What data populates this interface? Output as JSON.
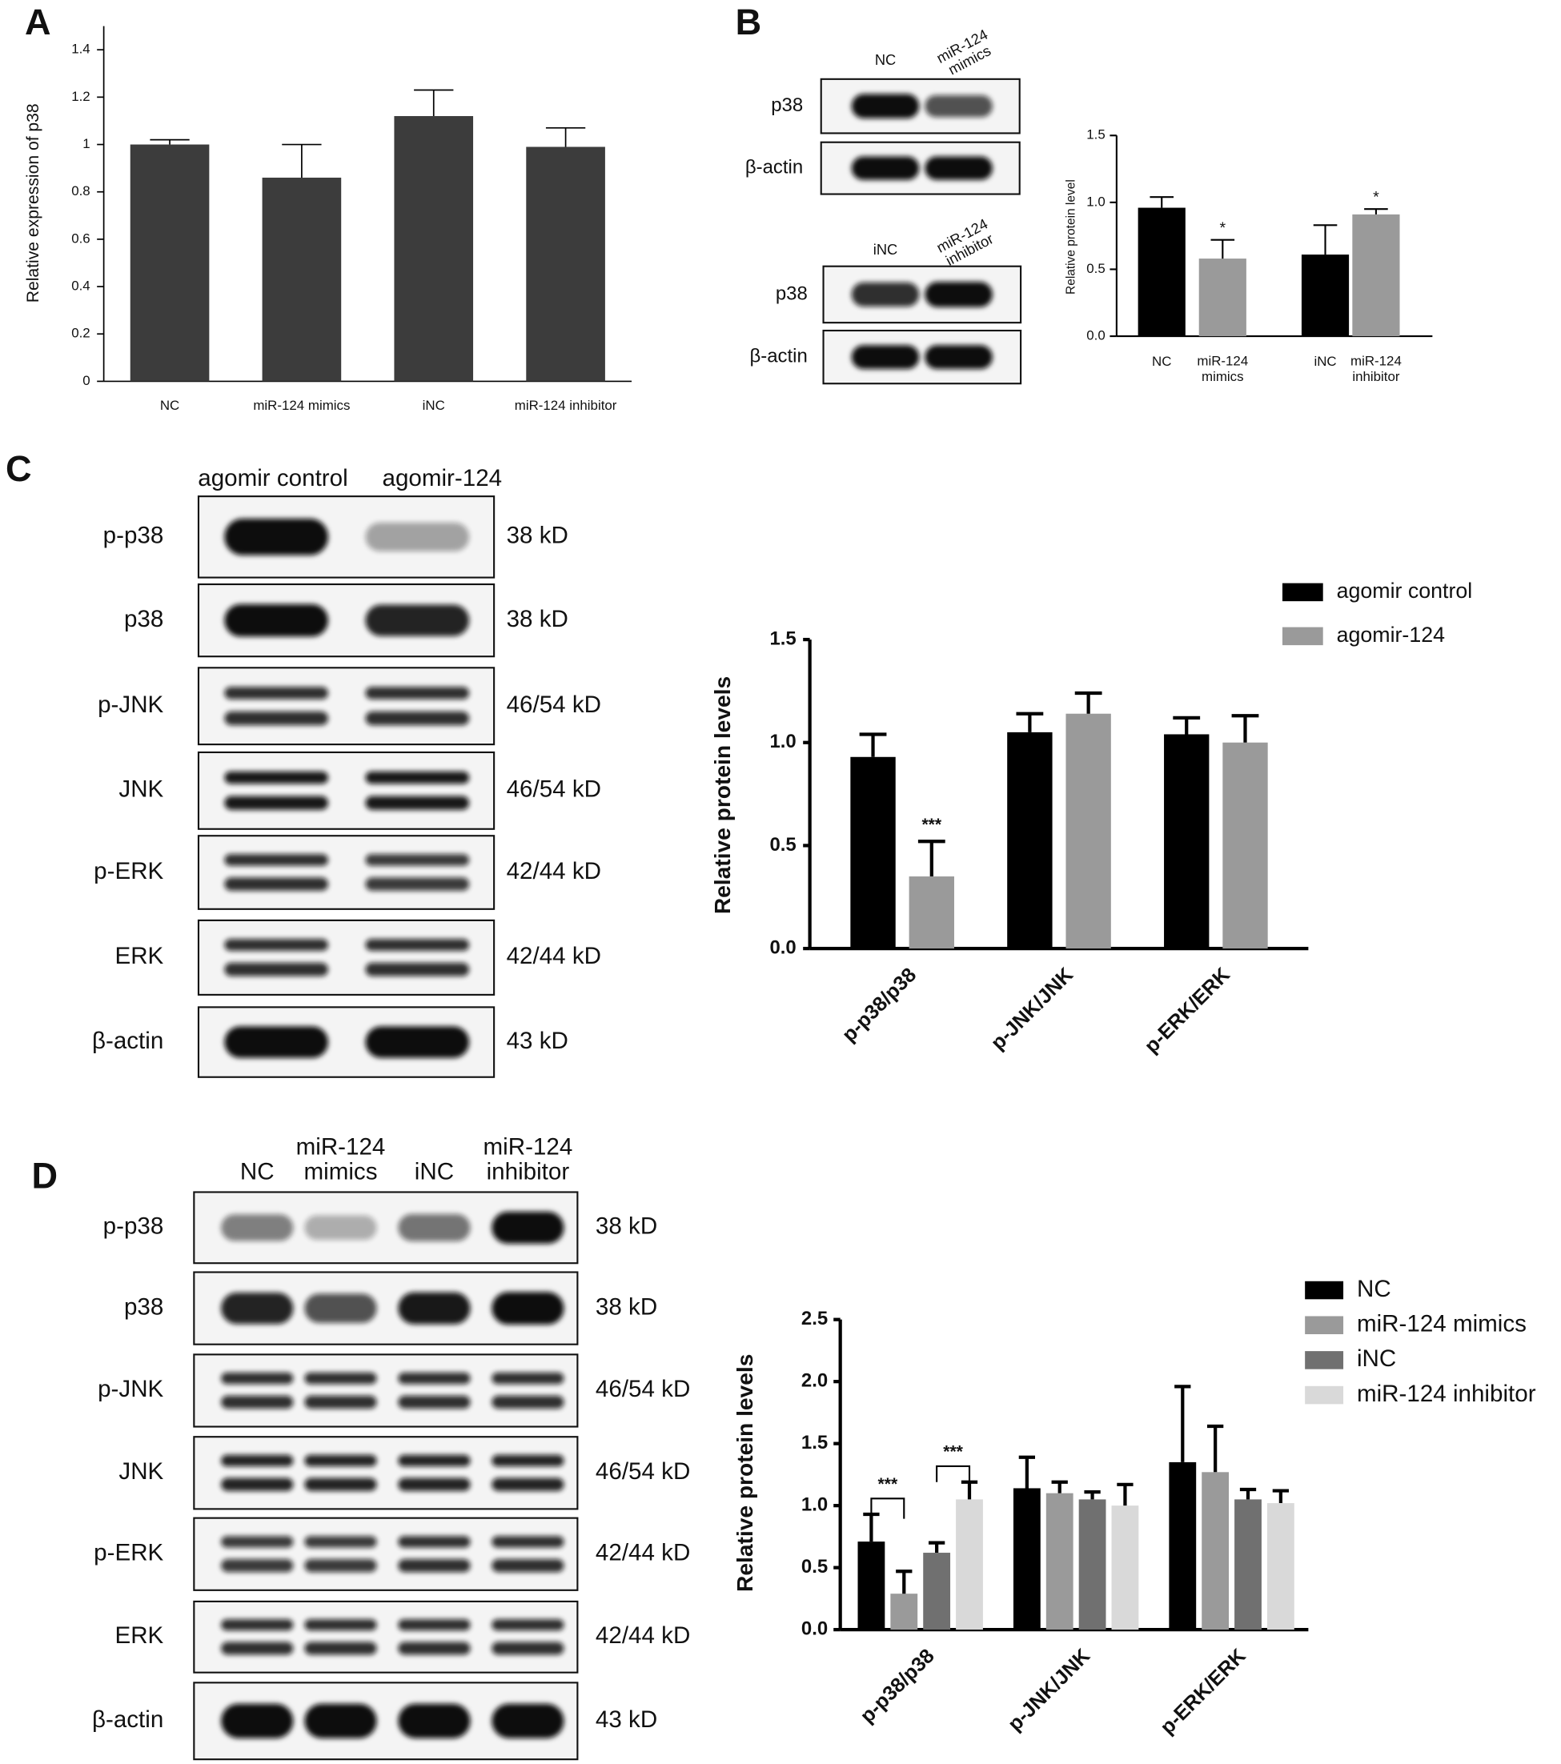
{
  "panel_labels": [
    "A",
    "B",
    "C",
    "D"
  ],
  "chart_data": [
    {
      "type": "bar",
      "y_label": "Relative expression of p38",
      "categories": [
        "NC",
        "miR-124 mimics",
        "iNC",
        "miR-124 inhibitor"
      ],
      "values": [
        1.0,
        0.86,
        1.12,
        0.99
      ],
      "errors": [
        0.02,
        0.14,
        0.11,
        0.08
      ],
      "color": "#3c3c3c",
      "ylim": [
        0,
        1.5
      ],
      "yticks": [
        0,
        0.2,
        0.4,
        0.6,
        0.8,
        1,
        1.2,
        1.4
      ]
    },
    {
      "type": "bar",
      "y_label": "Relative protein level",
      "categories": [
        "NC",
        "miR-124\nmimics",
        "iNC",
        "miR-124\ninhibitor"
      ],
      "values": [
        0.96,
        0.58,
        0.61,
        0.91
      ],
      "errors": [
        0.08,
        0.14,
        0.22,
        0.04
      ],
      "colors": [
        "#000000",
        "#9a9a9a",
        "#000000",
        "#9a9a9a"
      ],
      "ylim": [
        0,
        1.5
      ],
      "yticks": [
        {
          "value": 0,
          "label": "0.0"
        },
        {
          "value": 0.5,
          "label": "0.5"
        },
        {
          "value": 1,
          "label": "1.0"
        },
        {
          "value": 1.5,
          "label": "1.5"
        }
      ],
      "annotations": [
        {
          "index": 1,
          "text": "*"
        },
        {
          "index": 3,
          "text": "*"
        }
      ]
    },
    {
      "type": "grouped-bar",
      "y_label": "Relative protein levels",
      "categories": [
        "p-p38/p38",
        "p-JNK/JNK",
        "p-ERK/ERK"
      ],
      "series": [
        {
          "name": "agomir control",
          "color": "#000000",
          "values": [
            0.93,
            1.05,
            1.04
          ],
          "errors": [
            0.11,
            0.09,
            0.08
          ]
        },
        {
          "name": "agomir-124",
          "color": "#9a9a9a",
          "values": [
            0.35,
            1.14,
            1.0
          ],
          "errors": [
            0.17,
            0.1,
            0.13
          ]
        }
      ],
      "ylim": [
        0,
        1.5
      ],
      "yticks": [
        {
          "value": 0,
          "label": "0.0"
        },
        {
          "value": 0.5,
          "label": "0.5"
        },
        {
          "value": 1,
          "label": "1.0"
        },
        {
          "value": 1.5,
          "label": "1.5"
        }
      ],
      "legend": "top-right",
      "annotations": [
        {
          "series": 1,
          "index": 0,
          "text": "***"
        }
      ]
    },
    {
      "type": "grouped-bar",
      "y_label": "Relative protein levels",
      "categories": [
        "p-p38/p38",
        "p-JNK/JNK",
        "p-ERK/ERK"
      ],
      "series": [
        {
          "name": "NC",
          "color": "#000000",
          "values": [
            0.71,
            1.14,
            1.35
          ],
          "errors": [
            0.22,
            0.25,
            0.61
          ]
        },
        {
          "name": "miR-124 mimics",
          "color": "#9a9a9a",
          "values": [
            0.29,
            1.1,
            1.27
          ],
          "errors": [
            0.18,
            0.09,
            0.37
          ]
        },
        {
          "name": "iNC",
          "color": "#707070",
          "values": [
            0.62,
            1.05,
            1.05
          ],
          "errors": [
            0.08,
            0.06,
            0.08
          ]
        },
        {
          "name": "miR-124 inhibitor",
          "color": "#d9d9d9",
          "values": [
            1.05,
            1.0,
            1.02
          ],
          "errors": [
            0.14,
            0.17,
            0.1
          ]
        }
      ],
      "ylim": [
        0,
        2.5
      ],
      "yticks": [
        {
          "value": 0,
          "label": "0.0"
        },
        {
          "value": 0.5,
          "label": "0.5"
        },
        {
          "value": 1,
          "label": "1.0"
        },
        {
          "value": 1.5,
          "label": "1.5"
        },
        {
          "value": 2,
          "label": "2.0"
        },
        {
          "value": 2.5,
          "label": "2.5"
        }
      ],
      "legend": "top-right",
      "brackets": [
        {
          "from_series": 0,
          "to_series": 1,
          "index": 0,
          "text": "***"
        },
        {
          "from_series": 2,
          "to_series": 3,
          "index": 0,
          "text": "***"
        }
      ]
    }
  ],
  "blots": [
    {
      "lanes": [
        "NC",
        "miR-124\nmimics"
      ],
      "rows": [
        {
          "label": "p38"
        },
        {
          "label": "β-actin"
        }
      ]
    },
    {
      "lanes": [
        "iNC",
        "miR-124\ninhibitor"
      ],
      "rows": [
        {
          "label": "p38"
        },
        {
          "label": "β-actin"
        }
      ]
    },
    {
      "lanes": [
        "agomir control",
        "agomir-124"
      ],
      "rows": [
        {
          "label": "p-p38",
          "size": "38 kD"
        },
        {
          "label": "p38",
          "size": "38 kD"
        },
        {
          "label": "p-JNK",
          "size": "46/54 kD"
        },
        {
          "label": "JNK",
          "size": "46/54 kD"
        },
        {
          "label": "p-ERK",
          "size": "42/44 kD"
        },
        {
          "label": "ERK",
          "size": "42/44 kD"
        },
        {
          "label": "β-actin",
          "size": "43 kD"
        }
      ]
    },
    {
      "lanes": [
        "NC",
        "miR-124\nmimics",
        "iNC",
        "miR-124\ninhibitor"
      ],
      "rows": [
        {
          "label": "p-p38",
          "size": "38 kD"
        },
        {
          "label": "p38",
          "size": "38 kD"
        },
        {
          "label": "p-JNK",
          "size": "46/54 kD"
        },
        {
          "label": "JNK",
          "size": "46/54 kD"
        },
        {
          "label": "p-ERK",
          "size": "42/44 kD"
        },
        {
          "label": "ERK",
          "size": "42/44 kD"
        },
        {
          "label": "β-actin",
          "size": "43 kD"
        }
      ]
    }
  ]
}
